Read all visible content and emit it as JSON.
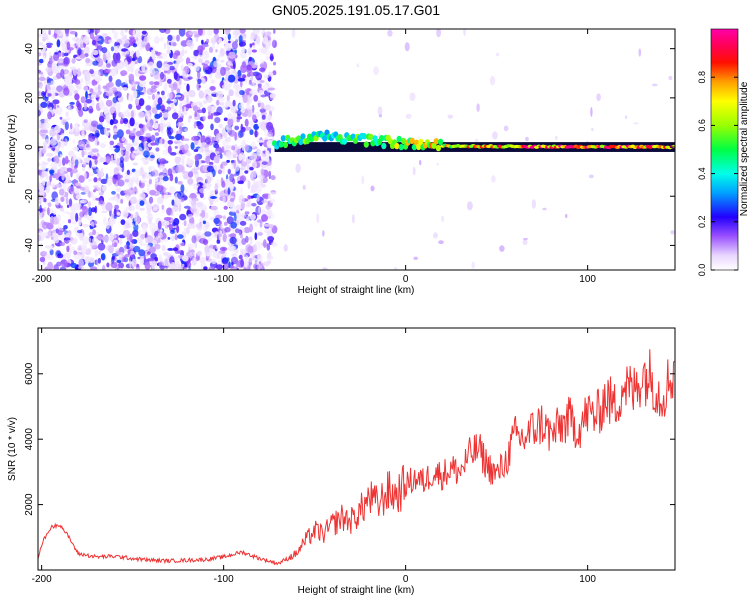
{
  "figure_title": "GN05.2025.191.05.17.G01",
  "colors": {
    "snr_line": "#ee3333",
    "ridge": "#000000",
    "colormap": [
      "#f2e6ff",
      "#e5ccff",
      "#b380ff",
      "#7a22ee",
      "#0000ff",
      "#00aaff",
      "#00ffe6",
      "#00ff44",
      "#b0ff00",
      "#ffff00",
      "#ff9900",
      "#ff0000",
      "#ff0066",
      "#ff00aa"
    ]
  },
  "chart_data": [
    {
      "type": "heatmap",
      "title": "GN05.2025.191.05.17.G01",
      "xlabel": "Height of straight line (km)",
      "ylabel": "Frequency (Hz)",
      "xlim": [
        -202,
        148
      ],
      "ylim": [
        -50,
        48
      ],
      "x_ticks": [
        "-200",
        "-100",
        "0",
        "100"
      ],
      "y_ticks": [
        "-40",
        "-20",
        "0",
        "20",
        "40"
      ],
      "colorbar": {
        "label": "Normalized spectral amplitude",
        "range": [
          0,
          1
        ],
        "ticks": [
          "0.0",
          "0.2",
          "0.4",
          "0.6",
          "0.8"
        ]
      },
      "ridge": {
        "x": [
          -72,
          -68,
          -60,
          -50,
          -40,
          -30,
          -20,
          -10,
          0,
          10,
          20,
          40,
          60,
          100,
          148
        ],
        "y": [
          1.5,
          2.0,
          3.0,
          4.0,
          4.5,
          3.5,
          2.5,
          2.0,
          1.5,
          1.0,
          0.5,
          0.3,
          0.2,
          0.1,
          0.0
        ],
        "amplitude": [
          0.45,
          0.5,
          0.55,
          0.55,
          0.5,
          0.55,
          0.6,
          0.65,
          0.7,
          0.75,
          0.8,
          0.85,
          0.9,
          0.95,
          0.98
        ]
      },
      "grid": false
    },
    {
      "type": "line",
      "xlabel": "Height of straight line (km)",
      "ylabel": "SNR (10 * v/v)",
      "xlim": [
        -202,
        148
      ],
      "ylim": [
        0,
        7400
      ],
      "x_ticks": [
        "-200",
        "-100",
        "0",
        "100"
      ],
      "y_ticks": [
        "2000",
        "4000",
        "6000"
      ],
      "series": [
        {
          "x": [
            -202,
            -200,
            -195,
            -190,
            -185,
            -180,
            -170,
            -160,
            -150,
            -140,
            -130,
            -120,
            -110,
            -100,
            -90,
            -80,
            -70,
            -60,
            -55,
            -50,
            -45,
            -40,
            -35,
            -30,
            -25,
            -20,
            -15,
            -10,
            -5,
            0,
            5,
            10,
            15,
            20,
            25,
            30,
            35,
            40,
            45,
            50,
            55,
            60,
            65,
            70,
            75,
            80,
            85,
            90,
            95,
            100,
            105,
            110,
            115,
            120,
            125,
            130,
            135,
            140,
            145,
            148
          ],
          "y": [
            300,
            800,
            1300,
            1400,
            1000,
            500,
            400,
            420,
            350,
            300,
            280,
            300,
            320,
            400,
            550,
            350,
            200,
            500,
            900,
            1200,
            1100,
            1400,
            1600,
            1500,
            1800,
            2200,
            2000,
            2400,
            2300,
            2600,
            2800,
            2700,
            3000,
            2900,
            3100,
            3000,
            3500,
            3700,
            3200,
            2900,
            3300,
            4100,
            4000,
            4300,
            4500,
            4100,
            4400,
            4600,
            4300,
            4800,
            4700,
            5300,
            5000,
            5700,
            5400,
            6000,
            5900,
            5300,
            5800,
            6200
          ]
        }
      ],
      "grid": false
    }
  ]
}
